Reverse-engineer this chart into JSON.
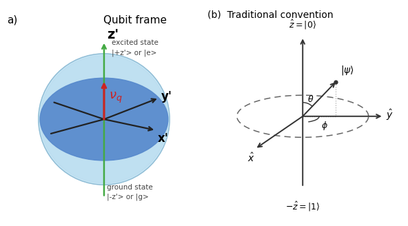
{
  "title_a": "Qubit frame",
  "title_b": "(b)  Traditional convention",
  "label_a": "a)",
  "sphere_light": "#c4e4f4",
  "sphere_mid": "#a8cce4",
  "equator_fill": "#5588cc",
  "equator_alpha": 0.9,
  "z_axis_color": "#44aa44",
  "nu_arrow_color": "#cc2222",
  "axis_dark": "#222222",
  "dashed_color": "#666666",
  "dotted_color": "#aaaaaa",
  "bg_color": "#ffffff",
  "xp_label": "x'",
  "yp_label": "y'",
  "zp_label": "z'",
  "excited_line1": "excited state",
  "excited_line2": "|+z'> or |e>",
  "ground_line1": "ground state",
  "ground_line2": "|-z'> or |g>",
  "nu_label": "$\\nu_q$",
  "z_hat_label": "$\\hat{z} = |0\\rangle$",
  "neg_z_hat_label": "$-\\hat{z} = |1\\rangle$",
  "x_hat_label": "$\\hat{x}$",
  "y_hat_label": "$\\hat{y}$",
  "psi_label": "$|\\psi\\rangle$",
  "theta_label": "$\\theta$",
  "phi_label": "$\\phi$"
}
